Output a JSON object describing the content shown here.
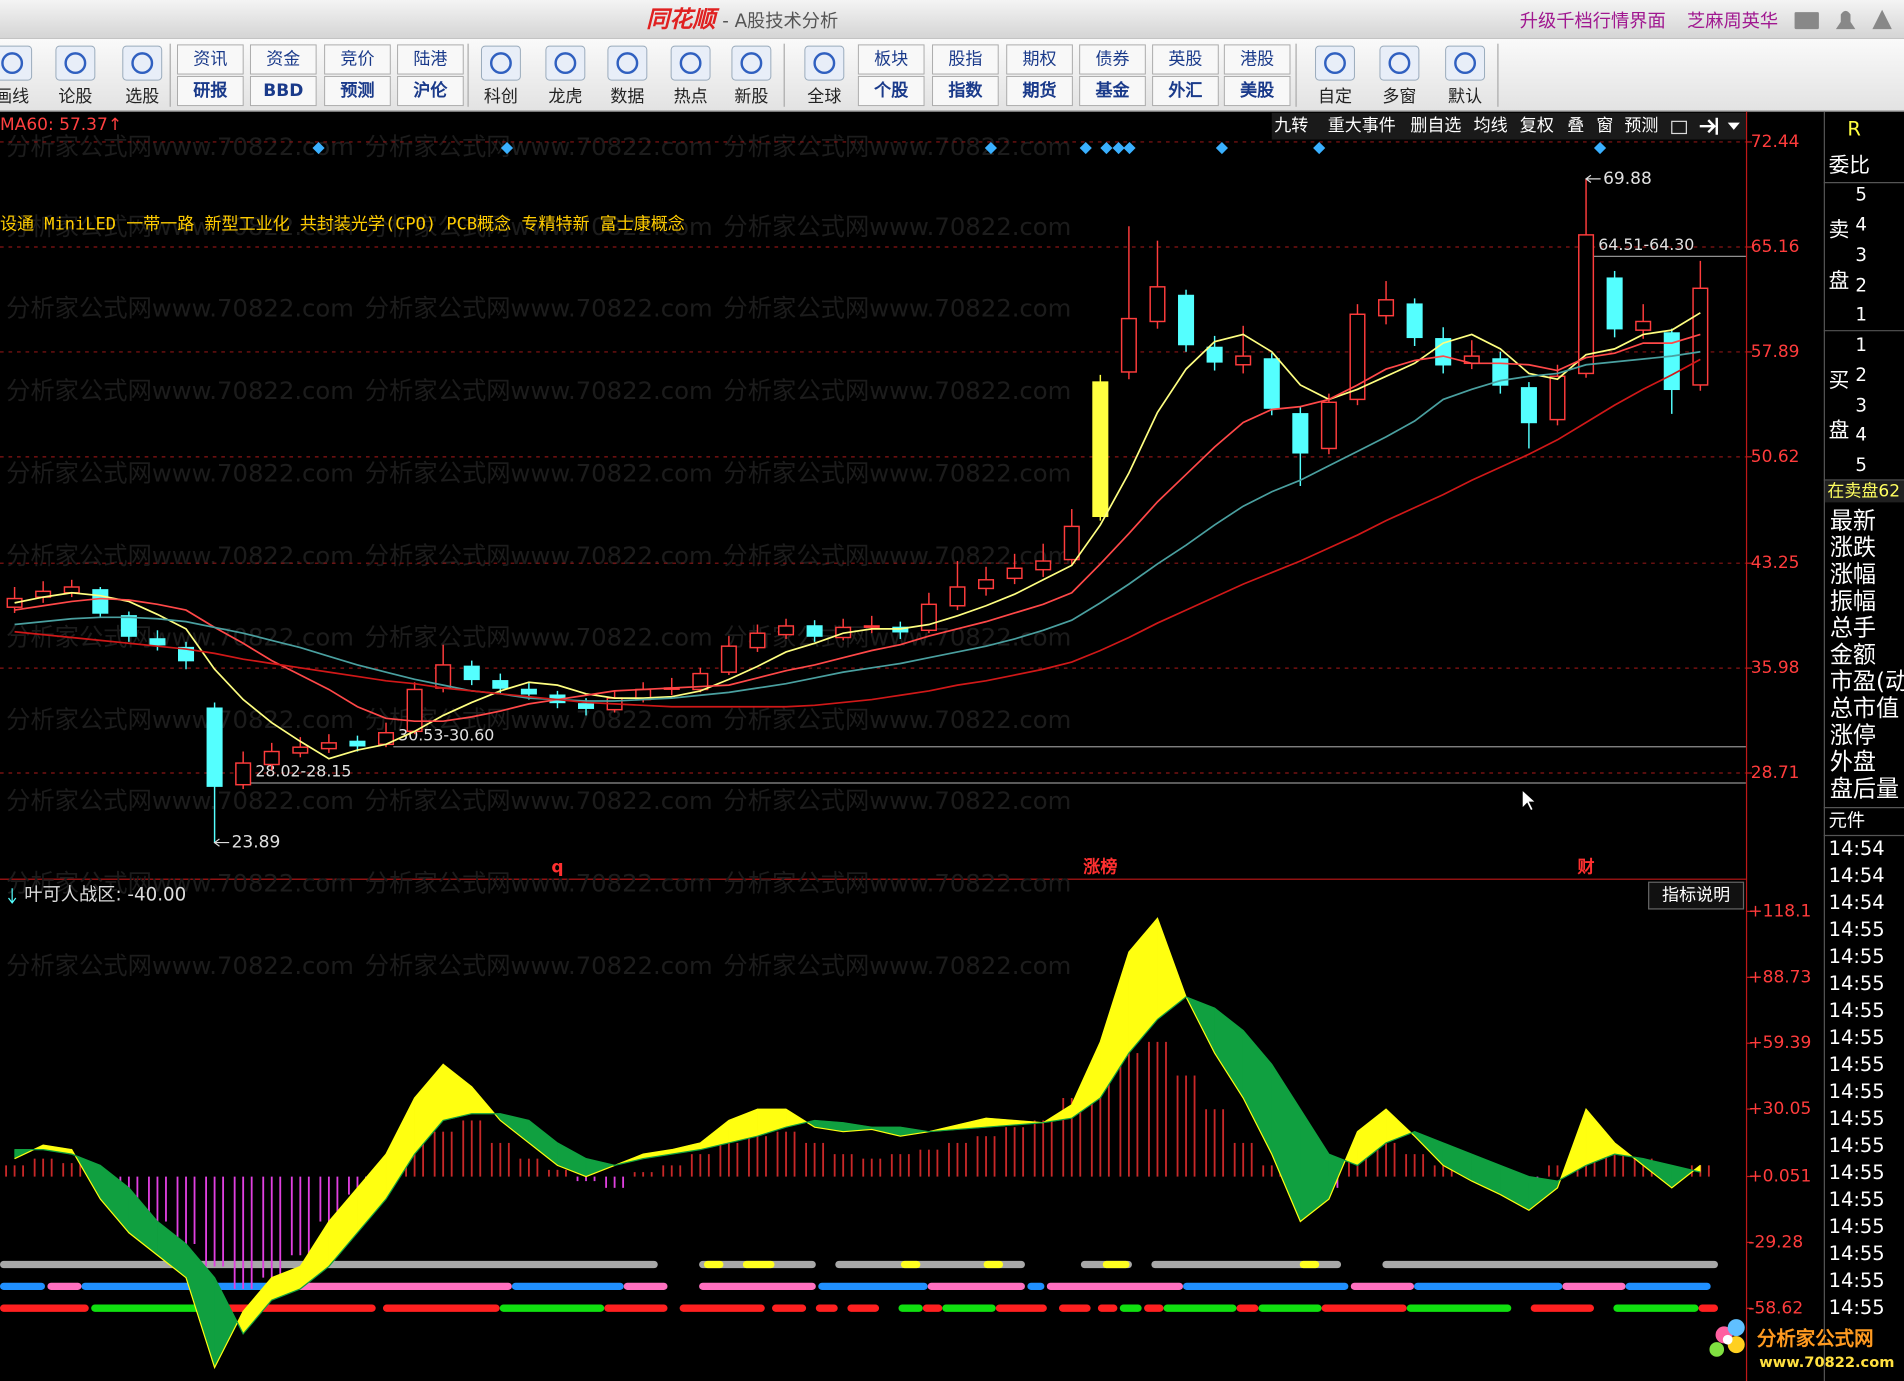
{
  "window": {
    "logo": "同花顺",
    "title": "- A股技术分析",
    "links": [
      "升级千档行情界面",
      "芝麻周英华"
    ]
  },
  "toolbar": {
    "icons_left": [
      "画线",
      "论股",
      "选股"
    ],
    "pairs_left": [
      [
        "资讯",
        "研报"
      ],
      [
        "资金",
        "BBD"
      ],
      [
        "竞价",
        "预测"
      ],
      [
        "陆港",
        "沪伦"
      ]
    ],
    "icons_mid": [
      "科创",
      "龙虎",
      "数据",
      "热点",
      "新股",
      "全球"
    ],
    "pairs_right": [
      [
        "板块",
        "个股"
      ],
      [
        "股指",
        "指数"
      ],
      [
        "期权",
        "期货"
      ],
      [
        "债券",
        "基金"
      ],
      [
        "英股",
        "外汇"
      ],
      [
        "港股",
        "美股"
      ]
    ],
    "icons_right": [
      "自定",
      "多窗",
      "默认"
    ]
  },
  "tabs": [
    "九转",
    "重大事件",
    "删自选",
    "均线",
    "复权",
    "叠",
    "窗",
    "预测"
  ],
  "watermark": "分析家公式网www.70822.com",
  "chart_data": [
    {
      "type": "candlestick",
      "legend_text": "MA60: 57.37↑",
      "concepts": "设通 MiniLED 一带一路 新型工业化 共封装光学(CPO) PCB概念 专精特新 富士康概念",
      "up_color": "#ff3c3c",
      "down_color": "#54ffff",
      "highlight": {
        "index": 38,
        "color": "#ffff40"
      },
      "ylim": [
        21.73,
        74.54
      ],
      "yticks": [
        72.44,
        65.16,
        57.89,
        50.62,
        43.25,
        35.98,
        28.71
      ],
      "grid": true,
      "ohlc": [
        [
          40.2,
          41.6,
          39.8,
          40.8
        ],
        [
          40.9,
          42.0,
          40.5,
          41.3
        ],
        [
          41.2,
          42.1,
          40.9,
          41.6
        ],
        [
          41.4,
          41.6,
          39.5,
          39.8
        ],
        [
          39.6,
          39.9,
          37.8,
          38.2
        ],
        [
          38.0,
          38.6,
          37.2,
          37.6
        ],
        [
          37.4,
          37.8,
          35.9,
          36.5
        ],
        [
          33.2,
          33.6,
          23.89,
          27.8
        ],
        [
          27.9,
          30.2,
          27.6,
          29.4
        ],
        [
          29.3,
          30.8,
          28.9,
          30.2
        ],
        [
          30.1,
          31.2,
          29.8,
          30.5
        ],
        [
          30.4,
          31.4,
          30.1,
          30.8
        ],
        [
          30.9,
          31.3,
          30.2,
          30.6
        ],
        [
          30.7,
          32.2,
          30.5,
          31.5
        ],
        [
          31.6,
          35.0,
          31.4,
          34.5
        ],
        [
          34.6,
          37.6,
          34.3,
          36.2
        ],
        [
          36.1,
          36.5,
          34.8,
          35.2
        ],
        [
          35.1,
          35.6,
          34.2,
          34.6
        ],
        [
          34.5,
          35.0,
          33.8,
          34.2
        ],
        [
          34.1,
          34.4,
          33.2,
          33.6
        ],
        [
          33.5,
          33.9,
          32.7,
          33.2
        ],
        [
          33.1,
          34.4,
          32.9,
          33.9
        ],
        [
          33.8,
          35.0,
          33.6,
          34.5
        ],
        [
          34.6,
          35.3,
          34.1,
          34.6
        ],
        [
          34.5,
          36.0,
          34.3,
          35.6
        ],
        [
          35.7,
          38.2,
          35.5,
          37.5
        ],
        [
          37.4,
          39.0,
          37.1,
          38.4
        ],
        [
          38.3,
          39.4,
          38.0,
          38.9
        ],
        [
          38.9,
          39.3,
          37.8,
          38.2
        ],
        [
          38.1,
          39.4,
          37.9,
          38.8
        ],
        [
          38.9,
          39.6,
          38.4,
          38.9
        ],
        [
          38.8,
          39.2,
          38.0,
          38.5
        ],
        [
          38.6,
          41.2,
          38.4,
          40.4
        ],
        [
          40.3,
          43.4,
          40.0,
          41.6
        ],
        [
          41.5,
          43.0,
          41.0,
          42.1
        ],
        [
          42.2,
          43.9,
          41.8,
          42.9
        ],
        [
          42.8,
          44.6,
          42.3,
          43.4
        ],
        [
          43.5,
          47.0,
          43.1,
          45.8
        ],
        [
          46.5,
          56.3,
          46.2,
          55.8
        ],
        [
          56.5,
          66.6,
          56.0,
          60.2
        ],
        [
          60.0,
          65.6,
          59.5,
          62.4
        ],
        [
          61.8,
          62.2,
          57.9,
          58.4
        ],
        [
          58.2,
          59.0,
          56.6,
          57.2
        ],
        [
          57.0,
          59.7,
          56.4,
          57.6
        ],
        [
          57.4,
          57.8,
          53.5,
          54.0
        ],
        [
          53.6,
          54.1,
          48.6,
          50.9
        ],
        [
          51.2,
          55.0,
          50.8,
          54.4
        ],
        [
          54.6,
          61.2,
          54.2,
          60.5
        ],
        [
          60.4,
          62.8,
          59.8,
          61.5
        ],
        [
          61.2,
          61.6,
          58.3,
          58.9
        ],
        [
          58.8,
          59.6,
          56.4,
          57.0
        ],
        [
          57.1,
          58.7,
          56.7,
          57.6
        ],
        [
          57.4,
          57.9,
          55.0,
          55.6
        ],
        [
          55.4,
          55.8,
          51.2,
          53.0
        ],
        [
          53.2,
          57.0,
          52.8,
          56.2
        ],
        [
          56.4,
          69.88,
          56.1,
          66.0
        ],
        [
          63.0,
          63.5,
          58.9,
          59.5
        ],
        [
          59.4,
          61.2,
          58.8,
          60.0
        ],
        [
          59.2,
          59.5,
          53.6,
          55.3
        ],
        [
          55.6,
          64.2,
          55.2,
          62.3
        ]
      ],
      "series": [
        {
          "color": "#ffff80",
          "values": [
            40.5,
            40.9,
            41.2,
            41.0,
            40.6,
            39.7,
            38.7,
            35.9,
            33.8,
            32.2,
            30.9,
            29.7,
            30.3,
            30.7,
            31.6,
            32.7,
            33.6,
            34.4,
            35.0,
            34.8,
            34.2,
            33.9,
            33.9,
            34.0,
            34.4,
            35.2,
            36.1,
            37.1,
            37.7,
            38.4,
            38.7,
            38.7,
            39.0,
            39.6,
            40.3,
            41.1,
            42.1,
            43.1,
            45.9,
            49.5,
            53.7,
            56.7,
            58.6,
            59.1,
            57.9,
            55.6,
            54.6,
            55.3,
            56.2,
            57.1,
            58.5,
            59.1,
            58.1,
            56.4,
            56.0,
            57.7,
            58.1,
            59.1,
            59.4,
            60.6
          ]
        },
        {
          "color": "#ff4848",
          "values": [
            40.0,
            40.3,
            40.6,
            40.8,
            40.7,
            40.4,
            40.0,
            38.8,
            37.7,
            36.5,
            35.5,
            34.5,
            33.3,
            32.5,
            32.3,
            32.3,
            32.6,
            33.0,
            33.5,
            33.8,
            34.1,
            34.4,
            34.5,
            34.6,
            34.7,
            34.8,
            35.3,
            35.8,
            36.2,
            36.7,
            37.2,
            37.6,
            38.2,
            38.7,
            39.2,
            39.8,
            40.4,
            41.2,
            43.2,
            45.3,
            47.5,
            49.4,
            51.3,
            53.0,
            53.9,
            54.1,
            54.6,
            55.6,
            56.7,
            57.3,
            57.6,
            57.1,
            57.1,
            57.0,
            56.6,
            57.5,
            57.8,
            58.5,
            58.5,
            59.1
          ]
        },
        {
          "color": "#4aa0a0",
          "values": [
            39.0,
            39.2,
            39.4,
            39.5,
            39.5,
            39.4,
            39.2,
            38.8,
            38.4,
            37.9,
            37.4,
            36.8,
            36.2,
            35.7,
            35.2,
            34.8,
            34.4,
            34.2,
            33.9,
            33.8,
            33.7,
            33.7,
            33.8,
            33.9,
            34.1,
            34.3,
            34.6,
            34.9,
            35.3,
            35.7,
            36.0,
            36.3,
            36.7,
            37.1,
            37.5,
            38.0,
            38.6,
            39.3,
            40.5,
            41.8,
            43.2,
            44.5,
            45.9,
            47.2,
            48.2,
            49.0,
            50.0,
            51.0,
            52.0,
            53.1,
            54.6,
            55.3,
            55.9,
            56.2,
            56.4,
            57.0,
            57.2,
            57.4,
            57.6,
            57.9
          ]
        },
        {
          "color": "#d01818",
          "values": [
            38.5,
            38.3,
            38.1,
            37.9,
            37.7,
            37.5,
            37.3,
            37.0,
            36.6,
            36.3,
            36.0,
            35.7,
            35.4,
            35.1,
            34.9,
            34.6,
            34.4,
            34.2,
            34.0,
            33.8,
            33.6,
            33.5,
            33.4,
            33.3,
            33.3,
            33.3,
            33.3,
            33.3,
            33.4,
            33.6,
            33.8,
            34.1,
            34.4,
            34.8,
            35.1,
            35.5,
            35.9,
            36.4,
            37.2,
            38.1,
            39.1,
            40.0,
            40.9,
            41.8,
            42.6,
            43.4,
            44.3,
            45.2,
            46.2,
            47.1,
            48.0,
            49.0,
            49.9,
            50.8,
            51.8,
            53.0,
            54.2,
            55.3,
            56.3,
            57.37
          ]
        }
      ],
      "extremes": [
        {
          "index": 55,
          "value": 69.88
        },
        {
          "index": 7,
          "value": 23.89
        }
      ],
      "ranges": [
        {
          "index": 55,
          "value": 64.51,
          "label": "64.51-64.30"
        },
        {
          "index": 13,
          "value": 30.53,
          "label": "30.53-30.60"
        },
        {
          "index": 8,
          "value": 28.02,
          "label": "28.02-28.15"
        }
      ],
      "markers": [
        {
          "index": 19,
          "label": "q"
        },
        {
          "index": 38,
          "label": "涨榜"
        },
        {
          "index": 55,
          "label": "财"
        }
      ]
    },
    {
      "type": "band",
      "title": "叶可人战区: -40.00",
      "button": "指标说明",
      "ylim": [
        -91.0,
        131.6
      ],
      "yticks": [
        {
          "value": 118.1,
          "label": "+118.1"
        },
        {
          "value": 88.73,
          "label": "+88.73"
        },
        {
          "value": 59.39,
          "label": "+59.39"
        },
        {
          "value": 30.05,
          "label": "+30.05"
        },
        {
          "value": 0.051,
          "label": "+0.051"
        },
        -29.28,
        -58.62
      ],
      "series": [
        {
          "color": "#ffff10",
          "values": [
            8,
            14,
            12,
            -10,
            -25,
            -35,
            -45,
            -85,
            -60,
            -45,
            -40,
            -20,
            -5,
            10,
            35,
            50,
            40,
            25,
            15,
            5,
            0,
            5,
            10,
            12,
            15,
            25,
            30,
            30,
            22,
            20,
            21,
            18,
            20,
            23,
            26,
            25,
            24,
            32,
            60,
            100,
            115,
            80,
            55,
            35,
            10,
            -20,
            -10,
            20,
            30,
            18,
            5,
            -2,
            -8,
            -15,
            -5,
            30,
            15,
            5,
            -5,
            5
          ]
        },
        {
          "color": "#10a040",
          "values": [
            12,
            12,
            10,
            5,
            -5,
            -20,
            -30,
            -45,
            -70,
            -55,
            -50,
            -40,
            -25,
            -10,
            10,
            25,
            28,
            28,
            25,
            15,
            8,
            5,
            8,
            10,
            12,
            15,
            18,
            22,
            25,
            24,
            22,
            22,
            20,
            21,
            22,
            23,
            24,
            26,
            35,
            55,
            70,
            80,
            75,
            65,
            50,
            30,
            10,
            5,
            15,
            20,
            15,
            10,
            5,
            0,
            -2,
            5,
            10,
            8,
            5,
            2
          ]
        }
      ],
      "histogram": {
        "up_color": "#c82828",
        "down_color": "#e040e0",
        "values": [
          5,
          8,
          6,
          -3,
          -10,
          -20,
          -30,
          -40,
          -50,
          -45,
          -35,
          -20,
          -8,
          3,
          15,
          20,
          25,
          15,
          8,
          3,
          -2,
          -5,
          2,
          5,
          10,
          15,
          18,
          20,
          15,
          10,
          8,
          10,
          12,
          15,
          18,
          22,
          25,
          35,
          45,
          55,
          60,
          45,
          30,
          15,
          5,
          -10,
          -5,
          8,
          15,
          10,
          5,
          0,
          3,
          -3,
          5,
          10,
          12,
          8,
          3,
          5
        ]
      }
    }
  ],
  "sidebar": {
    "title": "R",
    "ratio": "委比",
    "sell": [
      "卖",
      "盘"
    ],
    "buy": [
      "买",
      "盘"
    ],
    "sell_levels": [
      5,
      4,
      3,
      2,
      1
    ],
    "buy_levels": [
      1,
      2,
      3,
      4,
      5
    ],
    "status": "在卖盘62",
    "fields": [
      "最新",
      "涨跌",
      "涨幅",
      "振幅",
      "总手",
      "金额",
      "市盈(动)",
      "总市值",
      "涨停",
      "外盘",
      "盘后量"
    ],
    "unit": "元件",
    "times": [
      "14:54",
      "14:54",
      "14:54",
      "14:55",
      "14:55",
      "14:55",
      "14:55",
      "14:55",
      "14:55",
      "14:55",
      "14:55",
      "14:55",
      "14:55",
      "14:55",
      "14:55",
      "14:55",
      "14:55",
      "14:55"
    ]
  },
  "logo": {
    "name": "分析家公式网",
    "url": "www.70822.com"
  }
}
